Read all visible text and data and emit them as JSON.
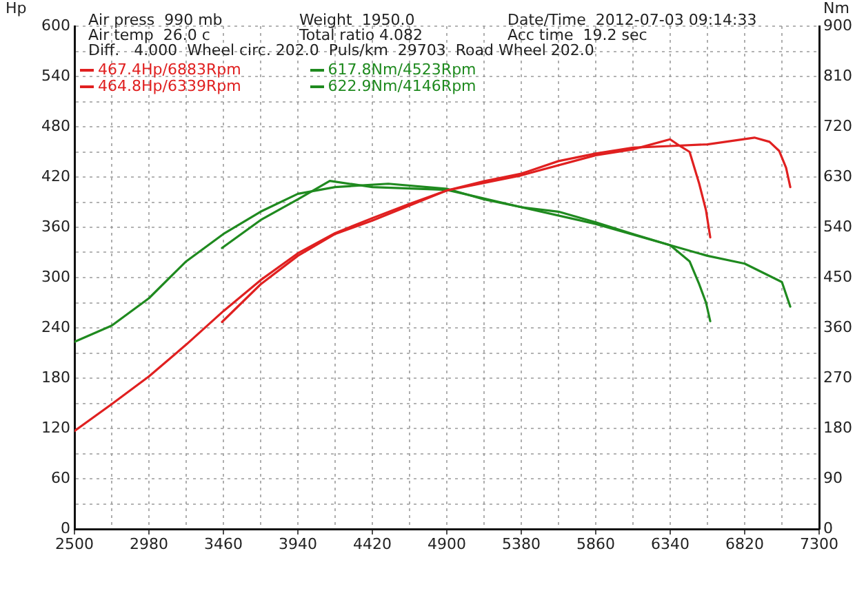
{
  "chart_data": {
    "type": "line",
    "ylabel": "Hp",
    "y2label": "Nm",
    "annotations": [
      "Air press  990 mb",
      "Air temp  26.0 c",
      "Diff.   4.000  Wheel circ. 202.0  Puls/km  29703  Road Wheel 202.0",
      "Weight  1950.0",
      "Total ratio 4.082",
      "Date/Time  2012-07-03 09:14:33",
      "Acc time  19.2 sec"
    ],
    "xlim": [
      2500,
      7300
    ],
    "xticks": [
      2500,
      {
        "value": 2740,
        "label": null
      },
      2980,
      {
        "value": 3220,
        "label": null
      },
      3460,
      {
        "value": 3700,
        "label": null
      },
      3940,
      {
        "value": 4180,
        "label": null
      },
      4420,
      {
        "value": 4660,
        "label": null
      },
      4900,
      {
        "value": 5140,
        "label": null
      },
      5380,
      {
        "value": 5620,
        "label": null
      },
      5860,
      {
        "value": 6100,
        "label": null
      },
      6340,
      {
        "value": 6580,
        "label": null
      },
      6820,
      {
        "value": 7060,
        "label": null
      },
      7300
    ],
    "ylim": [
      0,
      600
    ],
    "yticks": [
      0,
      {
        "value": 30,
        "label": null
      },
      60,
      {
        "value": 90,
        "label": null
      },
      120,
      {
        "value": 150,
        "label": null
      },
      180,
      {
        "value": 210,
        "label": null
      },
      240,
      {
        "value": 270,
        "label": null
      },
      300,
      {
        "value": 330,
        "label": null
      },
      360,
      {
        "value": 390,
        "label": null
      },
      420,
      {
        "value": 450,
        "label": null
      },
      480,
      {
        "value": 510,
        "label": null
      },
      540,
      {
        "value": 570,
        "label": null
      },
      600
    ],
    "y2lim": [
      0,
      900
    ],
    "y2ticks": [
      0,
      90,
      180,
      270,
      360,
      450,
      540,
      630,
      720,
      810,
      900
    ],
    "grid": true,
    "legend": "top left",
    "marker": "none",
    "line_style": "solid",
    "series": [
      {
        "name": "467.4Hp/6883Rpm",
        "color": "#e02020",
        "x": [
          2500,
          2740,
          2980,
          3220,
          3460,
          3700,
          3940,
          4180,
          4420,
          4660,
          4900,
          5140,
          5380,
          5620,
          5860,
          6100,
          6340,
          6580,
          6883,
          6980,
          7043,
          7087,
          7114
        ],
        "values": [
          117,
          149,
          182,
          220,
          260,
          297,
          329,
          353,
          371,
          388,
          404,
          415,
          424,
          439,
          448,
          455,
          457,
          459,
          467,
          462,
          451,
          431,
          408
        ]
      },
      {
        "name": "464.8Hp/6339Rpm",
        "color": "#e02020",
        "x": [
          3451,
          3700,
          3940,
          4180,
          4420,
          4900,
          5380,
          5860,
          6100,
          6339,
          6403,
          6465,
          6527,
          6571,
          6598
        ],
        "values": [
          247,
          292,
          326,
          352,
          368,
          404,
          422,
          446,
          453,
          465,
          457,
          450,
          412,
          380,
          348
        ]
      },
      {
        "name": "617.8Nm/4523Rpm",
        "color": "#1f8a1f",
        "axis": "y2",
        "x": [
          2500,
          2740,
          2980,
          3220,
          3460,
          3700,
          3940,
          4180,
          4523,
          4900,
          5140,
          5380,
          5620,
          5860,
          6100,
          6340,
          6580,
          6820,
          7060,
          7114
        ],
        "values": [
          335,
          364,
          413,
          479,
          528,
          568,
          600,
          612,
          618,
          609,
          590,
          576,
          568,
          549,
          528,
          508,
          489,
          475,
          442,
          398
        ]
      },
      {
        "name": "622.9Nm/4146Rpm",
        "color": "#1f8a1f",
        "axis": "y2",
        "x": [
          3451,
          3700,
          3940,
          4146,
          4420,
          4900,
          5380,
          5860,
          6340,
          6465,
          6527,
          6571,
          6598
        ],
        "values": [
          503,
          553,
          590,
          623,
          612,
          607,
          576,
          546,
          508,
          479,
          438,
          405,
          372
        ]
      }
    ]
  }
}
